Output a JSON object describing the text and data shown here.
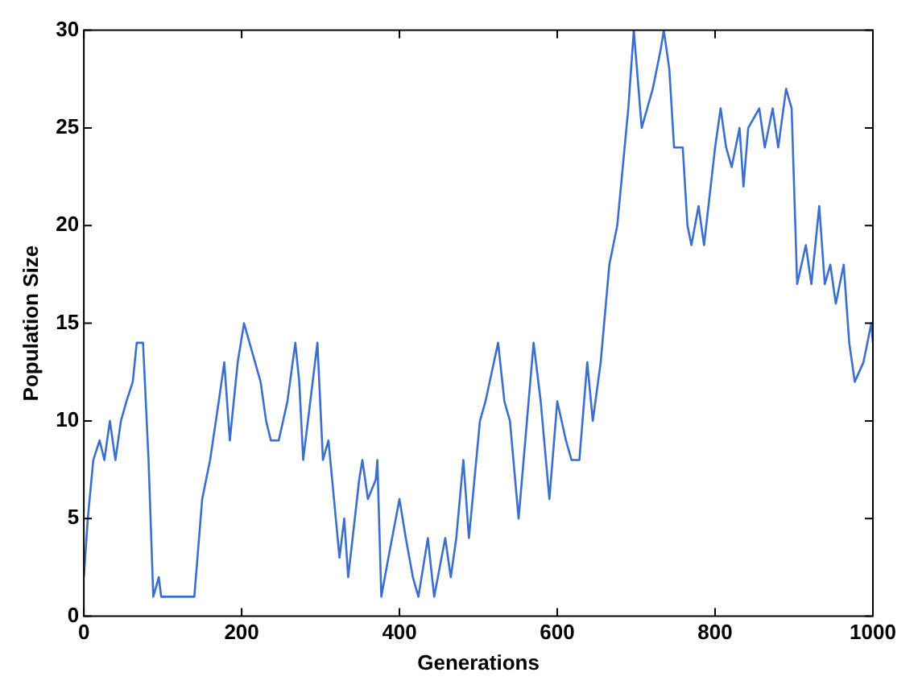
{
  "chart_data": {
    "type": "line",
    "xlabel": "Generations",
    "ylabel": "Population Size",
    "xlim": [
      0,
      1000
    ],
    "ylim": [
      0,
      30
    ],
    "xticks": [
      0,
      200,
      400,
      600,
      800,
      1000
    ],
    "yticks": [
      0,
      5,
      10,
      15,
      20,
      25,
      30
    ],
    "grid": false,
    "legend": false,
    "marker": "none",
    "line_style": "solid",
    "series": [
      {
        "color": "#3b6fcc",
        "x": [
          0,
          5,
          12,
          20,
          26,
          33,
          40,
          47,
          54,
          62,
          67,
          75,
          82,
          88,
          95,
          98,
          140,
          150,
          160,
          171,
          178,
          185,
          195,
          203,
          210,
          224,
          231,
          237,
          247,
          258,
          268,
          273,
          278,
          284,
          296,
          303,
          310,
          317,
          324,
          330,
          335,
          349,
          353,
          360,
          370,
          372,
          377,
          386,
          400,
          408,
          417,
          424,
          436,
          444,
          458,
          465,
          472,
          481,
          488,
          502,
          509,
          525,
          533,
          540,
          551,
          570,
          579,
          590,
          600,
          611,
          618,
          628,
          638,
          645,
          655,
          666,
          676,
          690,
          697,
          707,
          714,
          721,
          731,
          735,
          742,
          748,
          759,
          765,
          770,
          779,
          786,
          800,
          807,
          814,
          821,
          831,
          836,
          842,
          856,
          863,
          873,
          880,
          890,
          897,
          904,
          915,
          922,
          932,
          939,
          946,
          953,
          963,
          970,
          977,
          988,
          998,
          1000
        ],
        "values": [
          2,
          5,
          8,
          9,
          8,
          10,
          8,
          10,
          11,
          12,
          14,
          14,
          8,
          1,
          2,
          1,
          1,
          6,
          8,
          11,
          13,
          9,
          13,
          15,
          14,
          12,
          10,
          9,
          9,
          11,
          14,
          12,
          8,
          10,
          14,
          8,
          9,
          6,
          3,
          5,
          2,
          7,
          8,
          6,
          7,
          8,
          1,
          3,
          6,
          4,
          2,
          1,
          4,
          1,
          4,
          2,
          4,
          8,
          4,
          10,
          11,
          14,
          11,
          10,
          5,
          14,
          11,
          6,
          11,
          9,
          8,
          8,
          13,
          10,
          13,
          18,
          20,
          26,
          30,
          25,
          26,
          27,
          29,
          30,
          28,
          24,
          24,
          20,
          19,
          21,
          19,
          24,
          26,
          24,
          23,
          25,
          22,
          25,
          26,
          24,
          26,
          24,
          27,
          26,
          17,
          19,
          17,
          21,
          17,
          18,
          16,
          18,
          14,
          12,
          13,
          15,
          14
        ]
      }
    ]
  }
}
